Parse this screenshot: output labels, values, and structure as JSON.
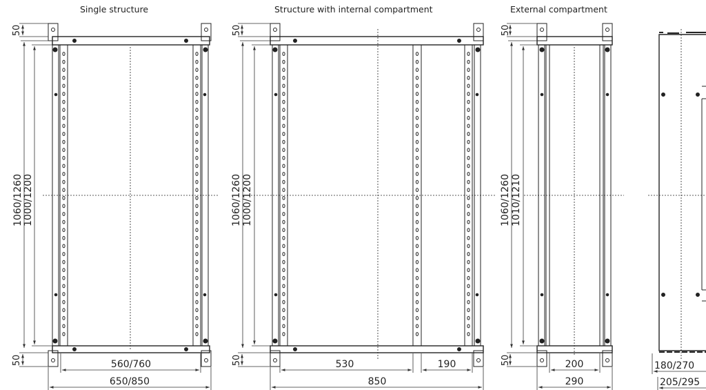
{
  "views": {
    "single": {
      "title": "Single structure",
      "dim_top": "50",
      "dim_bottom": "50",
      "dim_outer_height": "1060/1260",
      "dim_inner_height": "1000/1200",
      "dim_inner_width": "560/760",
      "dim_outer_width": "650/850"
    },
    "internal": {
      "title": "Structure with internal compartment",
      "dim_top": "50",
      "dim_bottom": "50",
      "dim_outer_height": "1060/1260",
      "dim_inner_height": "1000/1200",
      "dim_left_width": "530",
      "dim_right_width": "190",
      "dim_outer_width": "850"
    },
    "external": {
      "title": "External compartment",
      "dim_top": "50",
      "dim_bottom": "50",
      "dim_outer_height": "1060/1260",
      "dim_inner_height": "1010/1210",
      "dim_inner_width": "200",
      "dim_outer_width": "290"
    },
    "side": {
      "dim_inner_depth": "180/270",
      "dim_outer_depth": "205/295"
    }
  },
  "colors": {
    "line": "#222222",
    "dim": "#333333"
  }
}
